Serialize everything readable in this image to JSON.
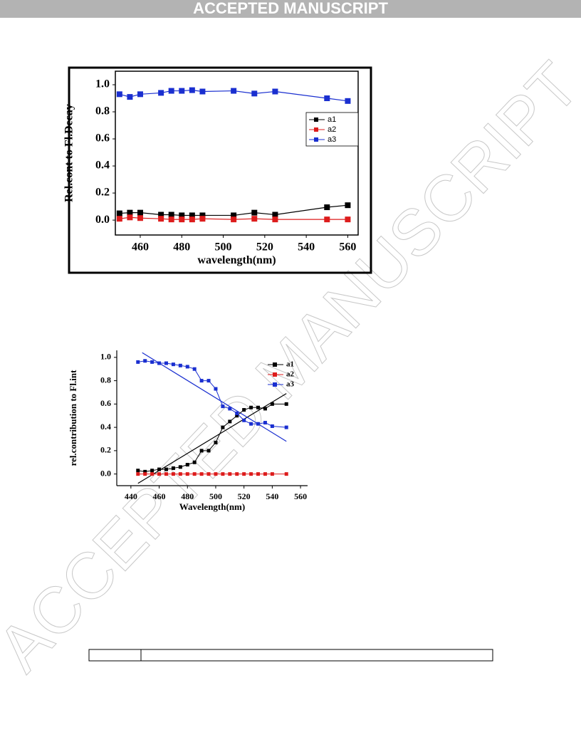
{
  "header": {
    "title": "ACCEPTED MANUSCRIPT"
  },
  "watermark": "ACCEPTED MANUSCRIPT",
  "chart_data": [
    {
      "type": "line",
      "x_label": "wavelength(nm)",
      "y_label": "Rel.cont to Fl.Decay",
      "xlim": [
        448,
        565
      ],
      "ylim": [
        -0.11,
        1.1
      ],
      "xticks": [
        460,
        480,
        500,
        520,
        540,
        560
      ],
      "yticks": [
        {
          "value": 0,
          "label": "0.0"
        },
        0.2,
        0.4,
        0.6,
        0.8,
        {
          "value": 1,
          "label": "1.0"
        }
      ],
      "legend": "upper right",
      "x": [
        450,
        455,
        460,
        470,
        475,
        480,
        485,
        490,
        505,
        515,
        525,
        550,
        560
      ],
      "series": [
        {
          "name": "a1",
          "color": "#000000",
          "values": [
            0.05,
            0.055,
            0.055,
            0.04,
            0.04,
            0.035,
            0.035,
            0.035,
            0.035,
            0.055,
            0.04,
            0.095,
            0.11
          ]
        },
        {
          "name": "a2",
          "color": "#dd1c1c",
          "values": [
            0.01,
            0.02,
            0.015,
            0.01,
            0.005,
            0.005,
            0.005,
            0.01,
            0.005,
            0.01,
            0.005,
            0.005,
            0.005
          ]
        },
        {
          "name": "a3",
          "color": "#1a2fd0",
          "values": [
            0.93,
            0.91,
            0.93,
            0.94,
            0.955,
            0.955,
            0.96,
            0.95,
            0.955,
            0.935,
            0.95,
            0.9,
            0.88
          ]
        }
      ]
    },
    {
      "type": "line",
      "x_label": "Wavelength(nm)",
      "y_label": "rel.contribution to Fl.int",
      "xlim": [
        430,
        565
      ],
      "ylim": [
        -0.1,
        1.06
      ],
      "xticks": [
        440,
        460,
        480,
        500,
        520,
        540,
        560
      ],
      "yticks": [
        {
          "value": 0,
          "label": "0.0"
        },
        0.2,
        0.4,
        0.6,
        0.8,
        {
          "value": 1,
          "label": "1.0"
        }
      ],
      "legend": "upper right",
      "x": [
        445,
        450,
        455,
        460,
        465,
        470,
        475,
        480,
        485,
        490,
        495,
        500,
        505,
        510,
        515,
        520,
        525,
        530,
        535,
        540,
        550
      ],
      "series": [
        {
          "name": "a1",
          "color": "#000000",
          "values": [
            0.03,
            0.02,
            0.03,
            0.04,
            0.04,
            0.05,
            0.06,
            0.08,
            0.1,
            0.2,
            0.2,
            0.27,
            0.4,
            0.45,
            0.5,
            0.55,
            0.57,
            0.57,
            0.56,
            0.6,
            0.6
          ]
        },
        {
          "name": "a2",
          "color": "#dd1c1c",
          "values": [
            0,
            0,
            0,
            0,
            0,
            0,
            0,
            0,
            0,
            0,
            0,
            0,
            0,
            0,
            0,
            0,
            0,
            0,
            0,
            0,
            0
          ]
        },
        {
          "name": "a3",
          "color": "#1a2fd0",
          "values": [
            0.96,
            0.97,
            0.96,
            0.95,
            0.95,
            0.94,
            0.93,
            0.92,
            0.9,
            0.8,
            0.8,
            0.73,
            0.58,
            0.56,
            0.52,
            0.46,
            0.43,
            0.43,
            0.44,
            0.41,
            0.4
          ]
        }
      ],
      "fit_lines": [
        {
          "color": "#000000",
          "x": [
            445,
            550
          ],
          "values": [
            -0.08,
            0.69
          ]
        },
        {
          "color": "#1a2fd0",
          "x": [
            448,
            550
          ],
          "values": [
            1.04,
            0.28
          ]
        }
      ]
    }
  ]
}
